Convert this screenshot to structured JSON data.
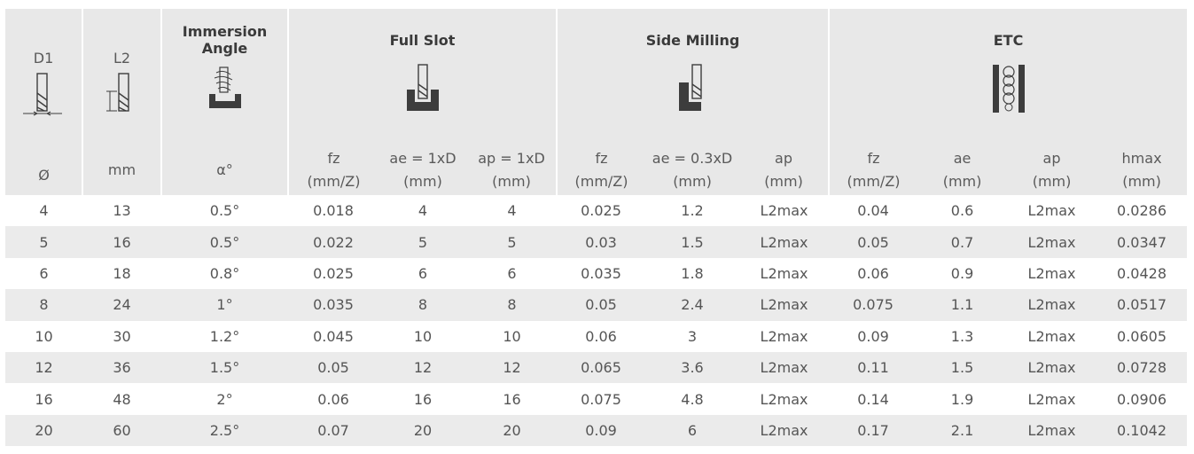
{
  "header": {
    "d1": {
      "label": "D1",
      "unit": "Ø"
    },
    "l2": {
      "label": "L2",
      "unit": "mm"
    },
    "immersion": {
      "title_line1": "Immersion",
      "title_line2": "Angle",
      "unit": "α°"
    },
    "full_slot": {
      "title": "Full Slot",
      "cols": [
        {
          "l1": "fz",
          "l2": "(mm/Z)"
        },
        {
          "l1": "ae = 1xD",
          "l2": "(mm)"
        },
        {
          "l1": "ap = 1xD",
          "l2": "(mm)"
        }
      ]
    },
    "side_milling": {
      "title": "Side Milling",
      "cols": [
        {
          "l1": "fz",
          "l2": "(mm/Z)"
        },
        {
          "l1": "ae = 0.3xD",
          "l2": "(mm)"
        },
        {
          "l1": "ap",
          "l2": "(mm)"
        }
      ]
    },
    "etc": {
      "title": "ETC",
      "cols": [
        {
          "l1": "fz",
          "l2": "(mm/Z)"
        },
        {
          "l1": "ae",
          "l2": "(mm)"
        },
        {
          "l1": "ap",
          "l2": "(mm)"
        },
        {
          "l1": "hmax",
          "l2": "(mm)"
        }
      ]
    }
  },
  "icons": {
    "d1": "end-mill-diameter-icon",
    "l2": "end-mill-length-icon",
    "immersion": "ramping-icon",
    "full_slot": "full-slot-icon",
    "side_milling": "side-milling-icon",
    "etc": "helical-interpolation-icon"
  },
  "colors": {
    "header_bg": "#e8e8e8",
    "stripe_bg": "#ebebeb",
    "icon_dark": "#3d3d3d"
  },
  "rows": [
    [
      "4",
      "13",
      "0.5°",
      "0.018",
      "4",
      "4",
      "0.025",
      "1.2",
      "L2max",
      "0.04",
      "0.6",
      "L2max",
      "0.0286"
    ],
    [
      "5",
      "16",
      "0.5°",
      "0.022",
      "5",
      "5",
      "0.03",
      "1.5",
      "L2max",
      "0.05",
      "0.7",
      "L2max",
      "0.0347"
    ],
    [
      "6",
      "18",
      "0.8°",
      "0.025",
      "6",
      "6",
      "0.035",
      "1.8",
      "L2max",
      "0.06",
      "0.9",
      "L2max",
      "0.0428"
    ],
    [
      "8",
      "24",
      "1°",
      "0.035",
      "8",
      "8",
      "0.05",
      "2.4",
      "L2max",
      "0.075",
      "1.1",
      "L2max",
      "0.0517"
    ],
    [
      "10",
      "30",
      "1.2°",
      "0.045",
      "10",
      "10",
      "0.06",
      "3",
      "L2max",
      "0.09",
      "1.3",
      "L2max",
      "0.0605"
    ],
    [
      "12",
      "36",
      "1.5°",
      "0.05",
      "12",
      "12",
      "0.065",
      "3.6",
      "L2max",
      "0.11",
      "1.5",
      "L2max",
      "0.0728"
    ],
    [
      "16",
      "48",
      "2°",
      "0.06",
      "16",
      "16",
      "0.075",
      "4.8",
      "L2max",
      "0.14",
      "1.9",
      "L2max",
      "0.0906"
    ],
    [
      "20",
      "60",
      "2.5°",
      "0.07",
      "20",
      "20",
      "0.09",
      "6",
      "L2max",
      "0.17",
      "2.1",
      "L2max",
      "0.1042"
    ]
  ]
}
